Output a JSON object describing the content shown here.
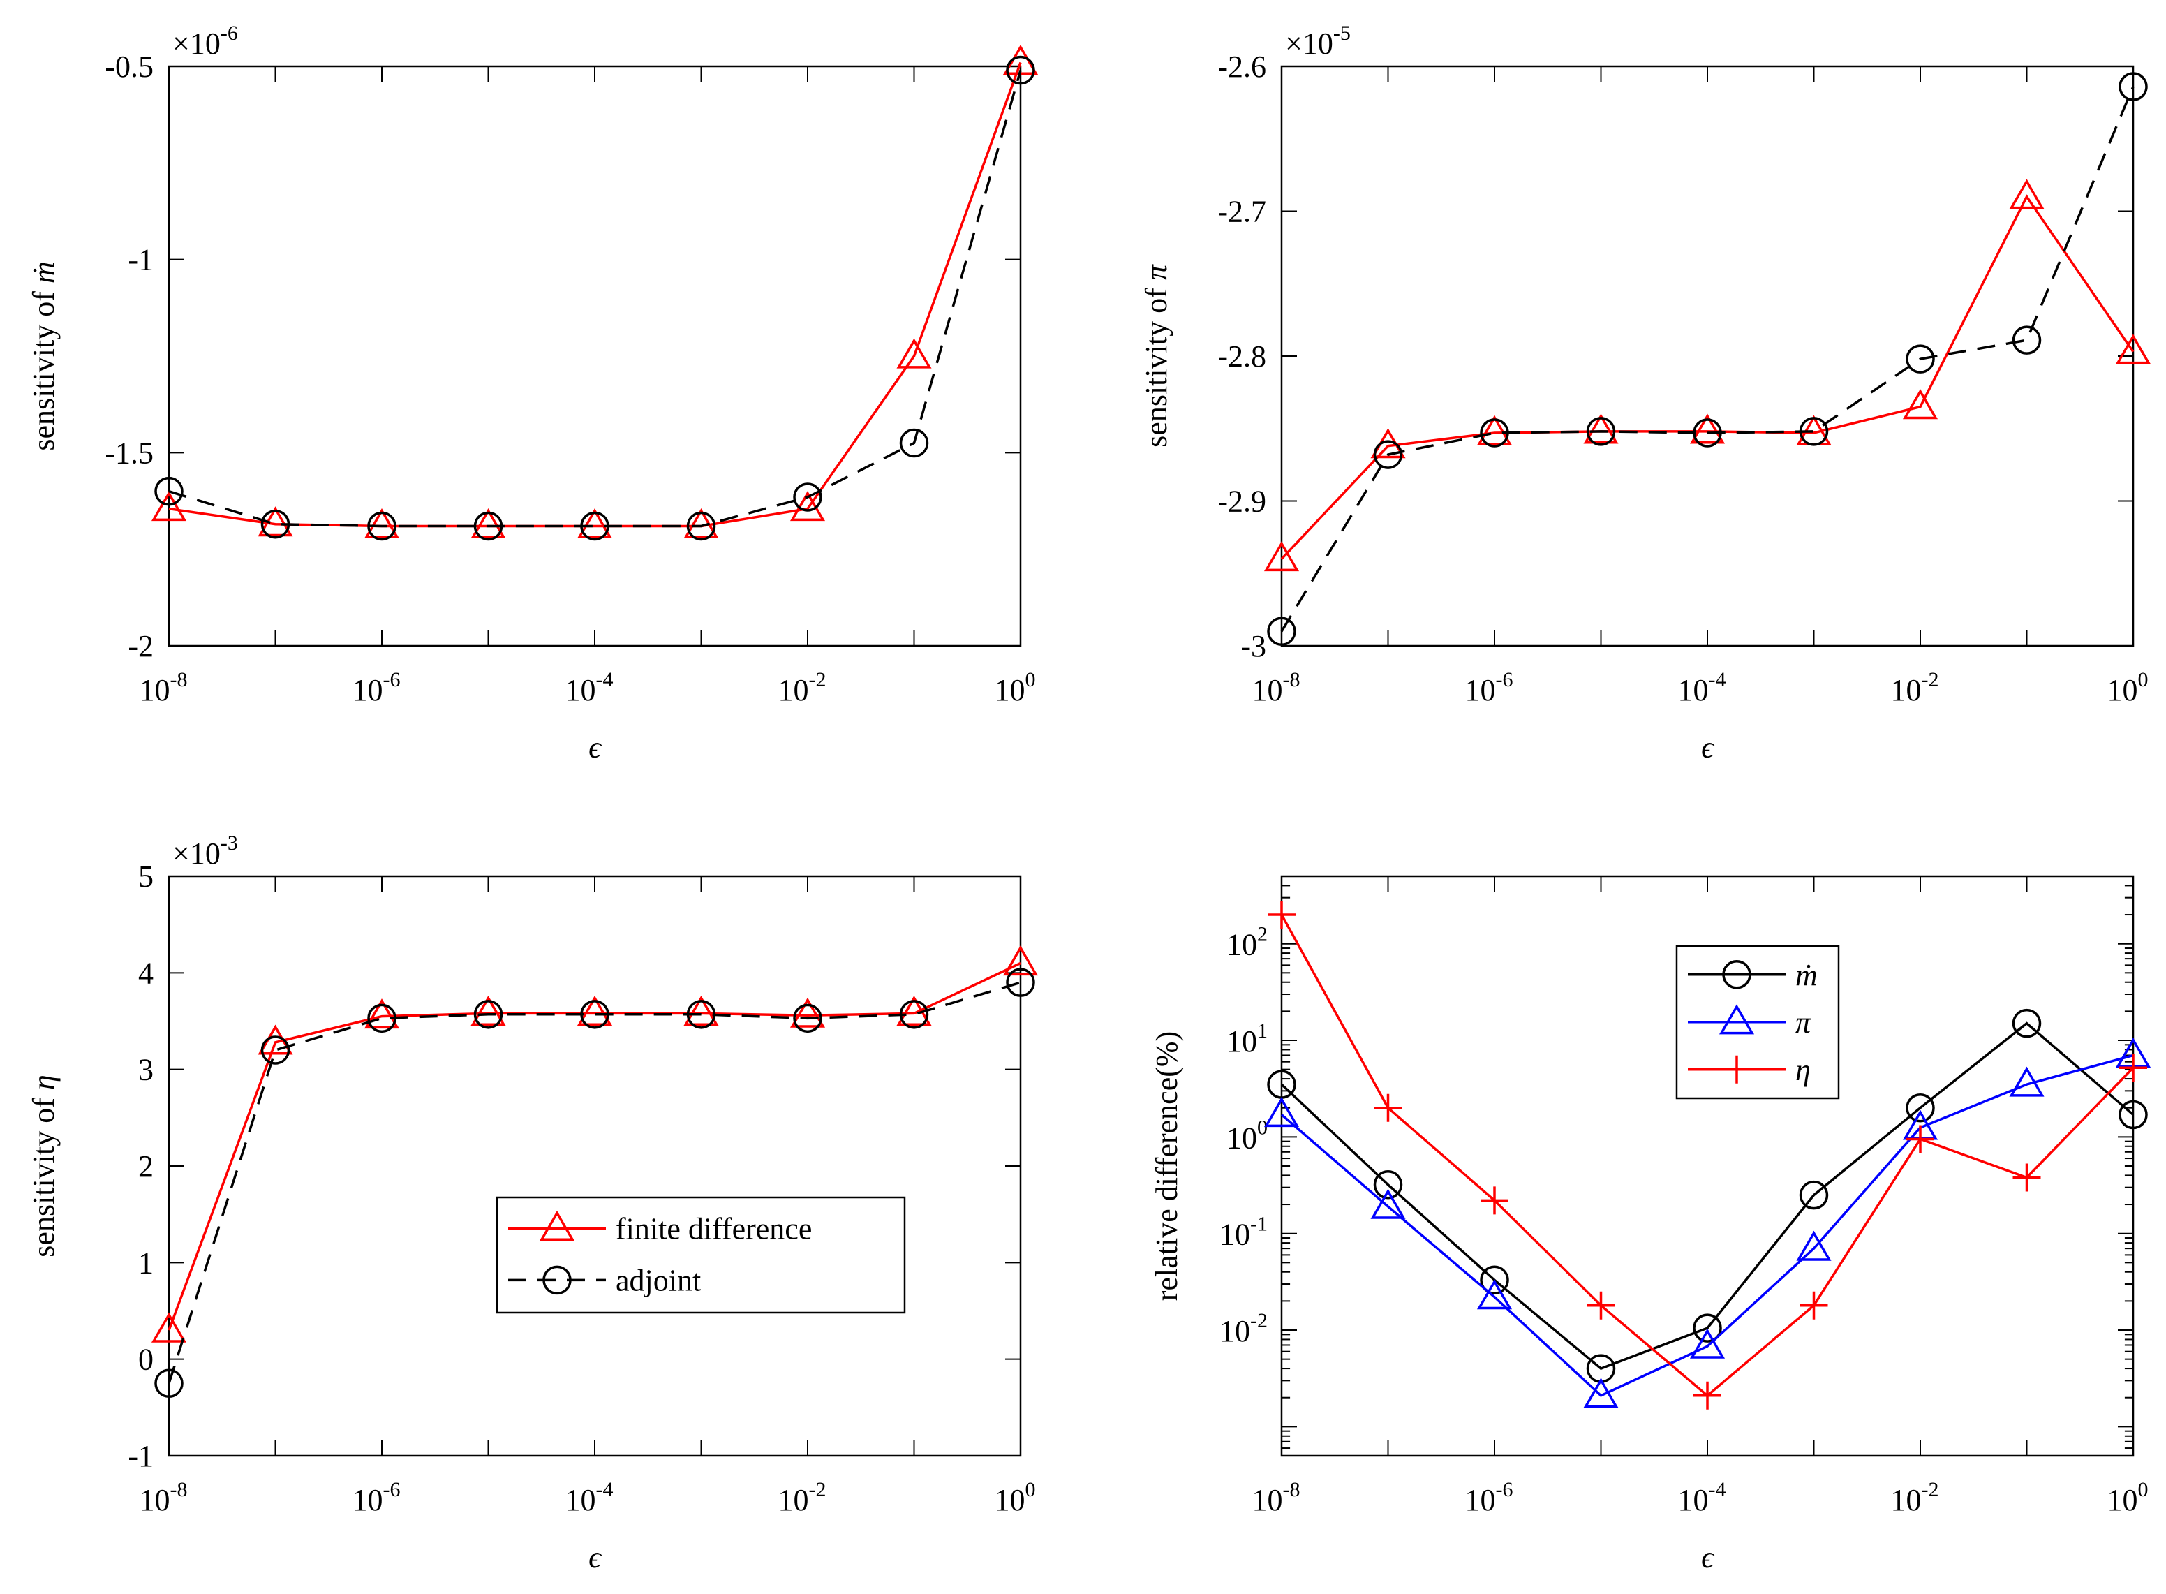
{
  "chart_data": [
    {
      "id": "mdot",
      "type": "line",
      "xscale": "log",
      "yscale": "linear",
      "x": [
        1e-08,
        1e-07,
        1e-06,
        1e-05,
        0.0001,
        0.001,
        0.01,
        0.1,
        1
      ],
      "xlim": [
        1e-08,
        1
      ],
      "ylim": [
        -2,
        -0.5
      ],
      "yticks": [
        -2,
        -1.5,
        -1,
        -0.5
      ],
      "ytick_labels": [
        "-2",
        "-1.5",
        "-1",
        "-0.5"
      ],
      "xtick_exponents": [
        "-8",
        "-6",
        "-4",
        "-2",
        "0"
      ],
      "xtick_base": "10",
      "y_multiplier_base": "×10",
      "y_multiplier_exp": "-6",
      "xlabel": "ϵ",
      "ylabel_text": "sensitivity of ",
      "ylabel_symbol": "ṁ",
      "series": [
        {
          "name": "finite difference",
          "color": "#ff0000",
          "marker": "triangle",
          "dash": "solid",
          "values": [
            -1.645,
            -1.685,
            -1.69,
            -1.69,
            -1.69,
            -1.69,
            -1.645,
            -1.25,
            -0.49
          ]
        },
        {
          "name": "adjoint",
          "color": "#000000",
          "marker": "circle",
          "dash": "dashed",
          "values": [
            -1.6,
            -1.685,
            -1.69,
            -1.69,
            -1.69,
            -1.69,
            -1.615,
            -1.475,
            -0.51
          ]
        }
      ]
    },
    {
      "id": "pi",
      "type": "line",
      "xscale": "log",
      "yscale": "linear",
      "x": [
        1e-08,
        1e-07,
        1e-06,
        1e-05,
        0.0001,
        0.001,
        0.01,
        0.1,
        1
      ],
      "xlim": [
        1e-08,
        1
      ],
      "ylim": [
        -3,
        -2.6
      ],
      "yticks": [
        -3,
        -2.9,
        -2.8,
        -2.7,
        -2.6
      ],
      "ytick_labels": [
        "-3",
        "-2.9",
        "-2.8",
        "-2.7",
        "-2.6"
      ],
      "xtick_exponents": [
        "-8",
        "-6",
        "-4",
        "-2",
        "0"
      ],
      "xtick_base": "10",
      "y_multiplier_base": "×10",
      "y_multiplier_exp": "-5",
      "xlabel": "ϵ",
      "ylabel_text": "sensitivity of ",
      "ylabel_symbol": "π",
      "series": [
        {
          "name": "finite difference",
          "color": "#ff0000",
          "marker": "triangle",
          "dash": "solid",
          "values": [
            -2.94,
            -2.862,
            -2.853,
            -2.852,
            -2.852,
            -2.853,
            -2.835,
            -2.69,
            -2.797
          ]
        },
        {
          "name": "adjoint",
          "color": "#000000",
          "marker": "circle",
          "dash": "dashed",
          "values": [
            -2.99,
            -2.868,
            -2.853,
            -2.852,
            -2.853,
            -2.852,
            -2.802,
            -2.789,
            -2.614
          ]
        }
      ]
    },
    {
      "id": "eta",
      "type": "line",
      "xscale": "log",
      "yscale": "linear",
      "x": [
        1e-08,
        1e-07,
        1e-06,
        1e-05,
        0.0001,
        0.001,
        0.01,
        0.1,
        1
      ],
      "xlim": [
        1e-08,
        1
      ],
      "ylim": [
        -1,
        5
      ],
      "yticks": [
        -1,
        0,
        1,
        2,
        3,
        4,
        5
      ],
      "ytick_labels": [
        "-1",
        "0",
        "1",
        "2",
        "3",
        "4",
        "5"
      ],
      "xtick_exponents": [
        "-8",
        "-6",
        "-4",
        "-2",
        "0"
      ],
      "xtick_base": "10",
      "y_multiplier_base": "×10",
      "y_multiplier_exp": "-3",
      "xlabel": "ϵ",
      "ylabel_text": "sensitivity of ",
      "ylabel_symbol": "η",
      "legend": {
        "location": "center-right",
        "entries": [
          "finite difference",
          "adjoint"
        ]
      },
      "series": [
        {
          "name": "finite difference",
          "color": "#ff0000",
          "marker": "triangle",
          "dash": "solid",
          "values": [
            0.3,
            3.28,
            3.55,
            3.58,
            3.58,
            3.58,
            3.56,
            3.58,
            4.1
          ]
        },
        {
          "name": "adjoint",
          "color": "#000000",
          "marker": "circle",
          "dash": "dashed",
          "values": [
            -0.25,
            3.2,
            3.53,
            3.57,
            3.57,
            3.57,
            3.53,
            3.57,
            3.9
          ]
        }
      ]
    },
    {
      "id": "reldiff",
      "type": "line",
      "xscale": "log",
      "yscale": "log",
      "x": [
        1e-08,
        1e-07,
        1e-06,
        1e-05,
        0.0001,
        0.001,
        0.01,
        0.1,
        1
      ],
      "xlim": [
        1e-08,
        1
      ],
      "ylim": [
        0.0005,
        500
      ],
      "ytick_exponents": [
        "-2",
        "-1",
        "0",
        "1",
        "2"
      ],
      "ytick_base": "10",
      "xtick_exponents": [
        "-8",
        "-6",
        "-4",
        "-2",
        "0"
      ],
      "xtick_base": "10",
      "xlabel": "ϵ",
      "ylabel": "relative difference(%)",
      "legend": {
        "location": "upper-center",
        "entries": [
          "ṁ",
          "π",
          "η"
        ]
      },
      "series": [
        {
          "name": "ṁ",
          "color": "#000000",
          "marker": "circle",
          "dash": "solid",
          "values": [
            3.5,
            0.32,
            0.033,
            0.004,
            0.0105,
            0.25,
            2.0,
            15.0,
            1.7
          ]
        },
        {
          "name": "π",
          "color": "#0000ff",
          "marker": "triangle",
          "dash": "solid",
          "values": [
            1.7,
            0.19,
            0.022,
            0.0021,
            0.0068,
            0.07,
            1.25,
            3.5,
            7.0
          ]
        },
        {
          "name": "η",
          "color": "#ff0000",
          "marker": "plus",
          "dash": "solid",
          "values": [
            200.0,
            2.0,
            0.22,
            0.018,
            0.0021,
            0.018,
            0.95,
            0.38,
            5.2
          ]
        }
      ]
    }
  ]
}
